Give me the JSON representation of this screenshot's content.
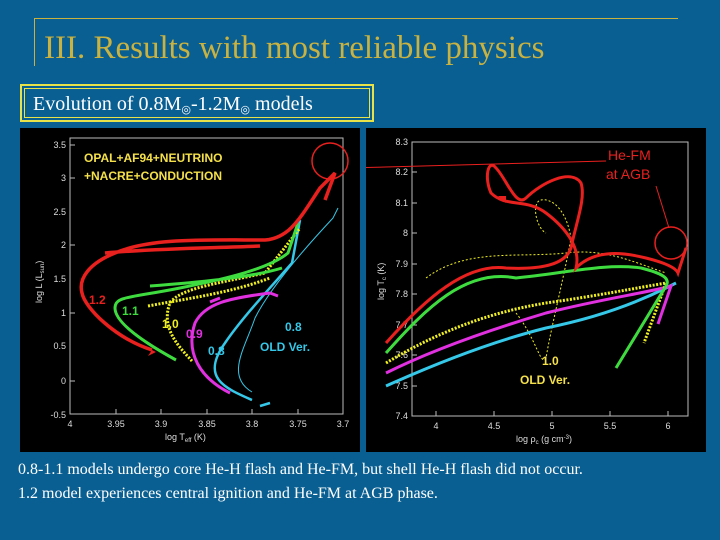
{
  "slide": {
    "title": "III. Results with most reliable physics",
    "subtitle": {
      "prefix": "Evolution of 0.8M",
      "sun": "◎",
      "mid": "-1.2M",
      "suffix": " models"
    },
    "footer_line1": "0.8-1.1 models undergo core He-H flash and He-FM, but shell He-H flash did not occur.",
    "footer_line2": "1.2 model experiences central ignition and He-FM at AGB phase."
  },
  "left_plot": {
    "annotation_line1": "OPAL+AF94+NEUTRINO",
    "annotation_line2": "+NACRE+CONDUCTION",
    "ylabel": "log L (L",
    "ylabel_sub": "sun",
    "ylabel_close": ")",
    "xlabel": "log T",
    "xlabel_sub": "eff",
    "xlabel_unit": " (K)",
    "xticks": [
      "4",
      "3.95",
      "3.9",
      "3.85",
      "3.8",
      "3.75",
      "3.7"
    ],
    "yticks": [
      "3.5",
      "3",
      "2.5",
      "2",
      "1.5",
      "1",
      "0.5",
      "0",
      "-0.5"
    ],
    "labels": {
      "m12": "1.2",
      "m11": "1.1",
      "m10": "1.0",
      "m09": "0.9",
      "m08": "0.8",
      "old1": "0.8",
      "old2": "OLD Ver."
    }
  },
  "right_plot": {
    "annotation_line1": "He-FM",
    "annotation_line2": "at AGB",
    "ylabel": "log T",
    "ylabel_sub": "c",
    "ylabel_unit": " (K)",
    "xlabel": "log ρ",
    "xlabel_sub": "c",
    "xlabel_unit": " (g cm",
    "xlabel_sup": "-3",
    "xlabel_close": ")",
    "xticks": [
      "4",
      "4.5",
      "5",
      "5.5",
      "6"
    ],
    "yticks": [
      "8.3",
      "8.2",
      "8.1",
      "8",
      "7.9",
      "7.8",
      "7.7",
      "7.6",
      "7.5",
      "7.4"
    ],
    "labels": {
      "old1": "1.0",
      "old2": "OLD Ver."
    }
  },
  "colors": {
    "background": "#0a5f92",
    "title": "#c9b23f",
    "m12": "#e8201e",
    "m11": "#3fdc3f",
    "m10": "#f0f020",
    "m09": "#e030e0",
    "m08": "#35c8e8",
    "annotation": "#f4e04a"
  }
}
